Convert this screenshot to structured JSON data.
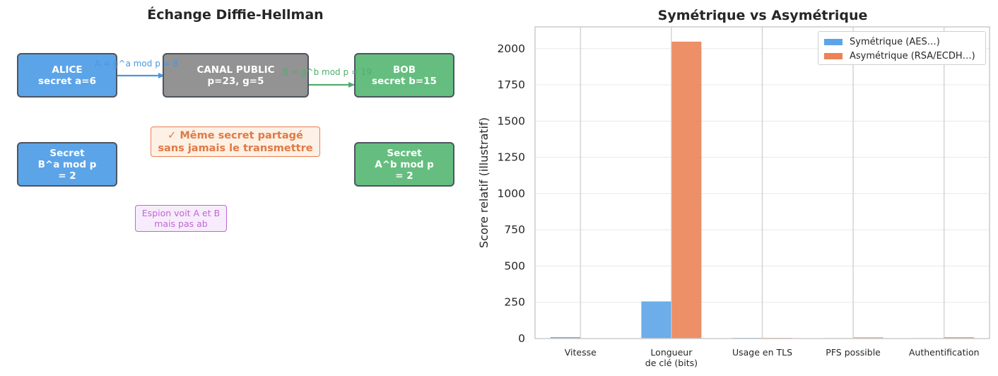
{
  "diagram": {
    "title": "Échange Diffie-Hellman",
    "nodes": {
      "alice": "ALICE\nsecret a=6",
      "canal": "CANAL PUBLIC\np=23, g=5",
      "bob": "BOB\nsecret b=15",
      "alice_secret": "Secret\nB^a mod p\n= 2",
      "bob_secret": "Secret\nA^b mod p\n= 2"
    },
    "arrows": {
      "alice_to_canal": "A = g^a mod p = 8",
      "canal_to_bob": "B = g^b mod p = 19"
    },
    "notes": {
      "shared": "✓ Même secret partagé\nsans jamais le transmettre",
      "spy": "Espion voit A et B\nmais pas ab"
    },
    "colors": {
      "alice": "#5ca4e8",
      "canal": "#939393",
      "bob": "#65be7f",
      "shared": "#e07a45",
      "spy": "#c266d6"
    }
  },
  "chart_data": {
    "type": "bar",
    "title": "Symétrique vs Asymétrique",
    "xlabel": "",
    "ylabel": "Score relatif (illustratif)",
    "categories": [
      "Vitesse",
      "Longueur\nde clé (bits)",
      "Usage en TLS",
      "PFS possible",
      "Authentification"
    ],
    "series": [
      {
        "name": "Symétrique (AES…)",
        "color": "#5ca4e8",
        "values": [
          10,
          256,
          5,
          3,
          3
        ]
      },
      {
        "name": "Asymétrique (RSA/ECDH…)",
        "color": "#eb8357",
        "values": [
          2,
          2048,
          5,
          8,
          9
        ]
      }
    ],
    "ylim": [
      0,
      2150
    ],
    "yticks": [
      0,
      250,
      500,
      750,
      1000,
      1250,
      1500,
      1750,
      2000
    ],
    "grid": true,
    "legend": "top-right"
  }
}
